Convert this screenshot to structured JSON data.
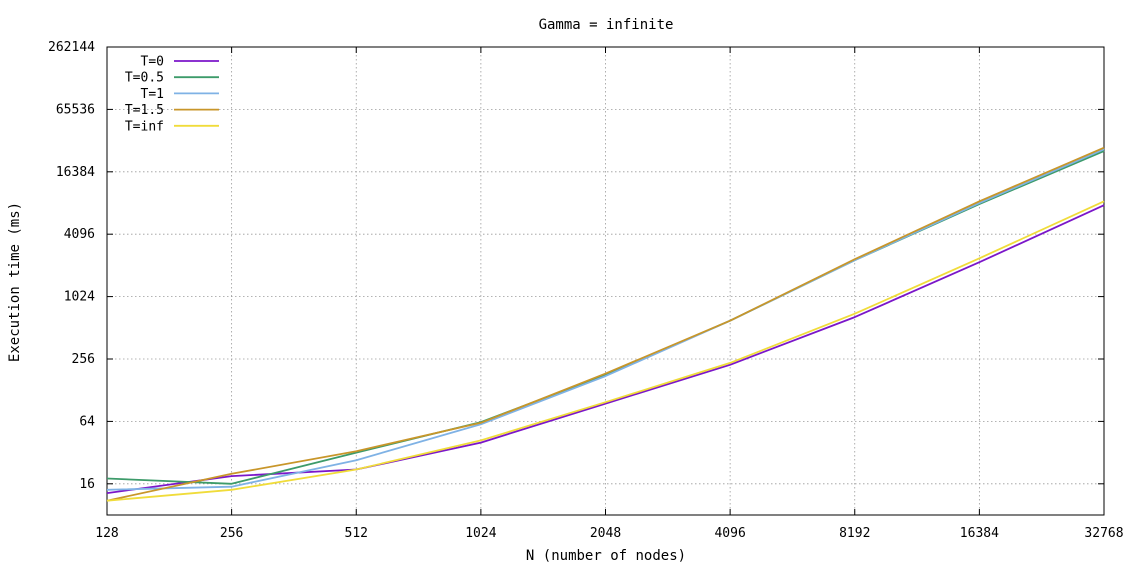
{
  "chart_data": {
    "type": "line",
    "title": "Gamma = infinite",
    "xlabel": "N (number of nodes)",
    "ylabel": "Execution time (ms)",
    "x_scale": "log2",
    "y_scale": "log2",
    "x": [
      128,
      256,
      512,
      1024,
      2048,
      4096,
      8192,
      16384,
      32768
    ],
    "x_tick_labels": [
      "128",
      "256",
      "512",
      "1024",
      "2048",
      "4096",
      "8192",
      "16384",
      "32768"
    ],
    "y_tick_values": [
      16,
      64,
      256,
      1024,
      4096,
      16384,
      65536,
      262144
    ],
    "y_tick_labels": [
      "16",
      "64",
      "256",
      "1024",
      "4096",
      "16384",
      "65536",
      "262144"
    ],
    "xlim": [
      128,
      32768
    ],
    "ylim": [
      8,
      262144
    ],
    "grid": true,
    "legend_position": "top-left",
    "series": [
      {
        "name": "T=0",
        "color": "#7b16c9",
        "values": [
          13,
          19,
          22,
          40,
          95,
          225,
          650,
          2200,
          7800
        ]
      },
      {
        "name": "T=0.5",
        "color": "#3d9b6a",
        "values": [
          18,
          16,
          32,
          63,
          180,
          600,
          2300,
          8000,
          26000
        ]
      },
      {
        "name": "T=1",
        "color": "#7fb2e5",
        "values": [
          14,
          15,
          27,
          60,
          175,
          600,
          2300,
          8200,
          27000
        ]
      },
      {
        "name": "T=1.5",
        "color": "#c8962a",
        "values": [
          11,
          20,
          33,
          62,
          185,
          600,
          2350,
          8500,
          28000
        ]
      },
      {
        "name": "T=inf",
        "color": "#f0dc3a",
        "values": [
          11,
          14,
          22,
          42,
          98,
          235,
          700,
          2400,
          8500
        ]
      }
    ]
  }
}
